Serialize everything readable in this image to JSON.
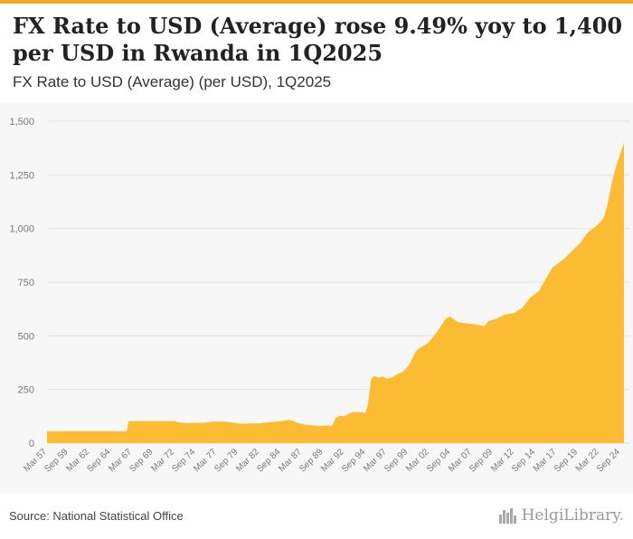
{
  "title": "FX Rate to USD (Average) rose 9.49% yoy to 1,400 per USD in Rwanda in 1Q2025",
  "subtitle": "FX Rate to USD (Average) (per USD), 1Q2025",
  "source": "Source: National Statistical Office",
  "logo_text": "HelgiLibrary.",
  "colors": {
    "accent": "#f5a623",
    "fill": "#fbbc34",
    "grid": "#e3e3e3",
    "axis_text": "#777777"
  },
  "chart_data": {
    "type": "area",
    "title": "FX Rate to USD (Average) (per USD), 1Q2025",
    "xlabel": "",
    "ylabel": "",
    "ylim": [
      0,
      1500
    ],
    "yticks": [
      0,
      250,
      500,
      750,
      1000,
      1250,
      1500
    ],
    "ytick_labels": [
      "0",
      "250",
      "500",
      "750",
      "1,000",
      "1,250",
      "1,500"
    ],
    "xtick_labels": [
      "Mar 57",
      "Sep 59",
      "Mar 62",
      "Sep 64",
      "Mar 67",
      "Sep 69",
      "Mar 72",
      "Sep 74",
      "Mar 77",
      "Sep 79",
      "Mar 82",
      "Sep 84",
      "Mar 87",
      "Sep 89",
      "Mar 92",
      "Sep 94",
      "Mar 97",
      "Sep 99",
      "Mar 02",
      "Sep 04",
      "Mar 07",
      "Sep 09",
      "Mar 12",
      "Sep 14",
      "Mar 17",
      "Sep 19",
      "Mar 22",
      "Sep 24"
    ],
    "x_start": 1957.0,
    "x_end": 2025.0,
    "series": [
      {
        "name": "FX Rate to USD (Average)",
        "points": [
          [
            1957.0,
            55
          ],
          [
            1965.5,
            55
          ],
          [
            1966.4,
            55
          ],
          [
            1966.6,
            103
          ],
          [
            1972.0,
            103
          ],
          [
            1972.5,
            97
          ],
          [
            1973.5,
            93
          ],
          [
            1974.5,
            95
          ],
          [
            1975.5,
            95
          ],
          [
            1976.5,
            100
          ],
          [
            1978.0,
            100
          ],
          [
            1979.0,
            95
          ],
          [
            1980.0,
            90
          ],
          [
            1981.0,
            92
          ],
          [
            1982.0,
            92
          ],
          [
            1983.0,
            97
          ],
          [
            1984.5,
            102
          ],
          [
            1985.5,
            108
          ],
          [
            1986.0,
            104
          ],
          [
            1986.5,
            95
          ],
          [
            1987.5,
            85
          ],
          [
            1989.0,
            80
          ],
          [
            1990.0,
            82
          ],
          [
            1990.6,
            80
          ],
          [
            1991.0,
            115
          ],
          [
            1991.5,
            128
          ],
          [
            1992.0,
            125
          ],
          [
            1993.0,
            145
          ],
          [
            1994.0,
            145
          ],
          [
            1994.5,
            140
          ],
          [
            1994.8,
            175
          ],
          [
            1995.2,
            300
          ],
          [
            1995.6,
            313
          ],
          [
            1996.0,
            305
          ],
          [
            1996.6,
            310
          ],
          [
            1997.0,
            300
          ],
          [
            1997.6,
            305
          ],
          [
            1998.0,
            315
          ],
          [
            1999.0,
            335
          ],
          [
            1999.6,
            360
          ],
          [
            2000.0,
            390
          ],
          [
            2000.5,
            430
          ],
          [
            2001.0,
            445
          ],
          [
            2002.0,
            470
          ],
          [
            2003.0,
            520
          ],
          [
            2004.0,
            580
          ],
          [
            2004.5,
            590
          ],
          [
            2005.0,
            575
          ],
          [
            2005.5,
            563
          ],
          [
            2006.0,
            560
          ],
          [
            2007.0,
            556
          ],
          [
            2008.0,
            550
          ],
          [
            2008.5,
            545
          ],
          [
            2009.0,
            568
          ],
          [
            2010.0,
            580
          ],
          [
            2011.0,
            600
          ],
          [
            2012.0,
            605
          ],
          [
            2013.0,
            630
          ],
          [
            2014.0,
            680
          ],
          [
            2015.0,
            710
          ],
          [
            2016.0,
            780
          ],
          [
            2016.6,
            820
          ],
          [
            2017.0,
            830
          ],
          [
            2018.0,
            860
          ],
          [
            2019.0,
            900
          ],
          [
            2020.0,
            940
          ],
          [
            2020.5,
            970
          ],
          [
            2021.0,
            990
          ],
          [
            2022.0,
            1020
          ],
          [
            2022.6,
            1050
          ],
          [
            2023.0,
            1100
          ],
          [
            2023.5,
            1200
          ],
          [
            2024.0,
            1280
          ],
          [
            2024.5,
            1340
          ],
          [
            2025.0,
            1400
          ]
        ]
      }
    ]
  }
}
